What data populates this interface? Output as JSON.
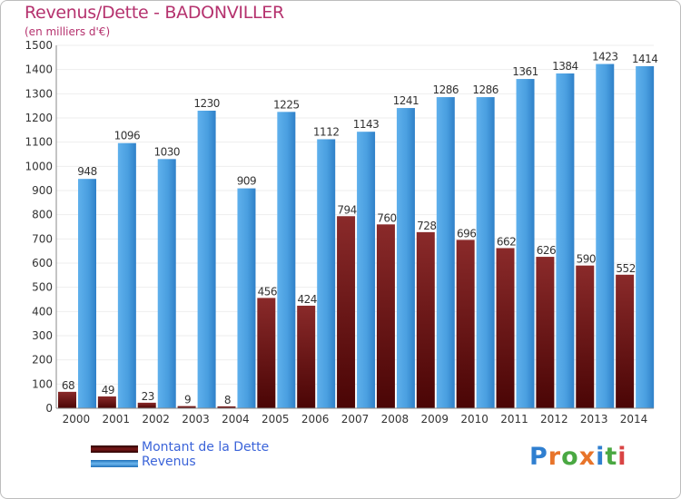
{
  "colors": {
    "title": "#b5326e",
    "debt": "#7a1818",
    "revenue": "#4a9fe0",
    "legend_text": "#3b64d9",
    "grid": "#eeeeee",
    "axis": "#888888"
  },
  "chart_data": {
    "type": "bar",
    "title": "Revenus/Dette - BADONVILLER",
    "subtitle": "(en milliers d'€)",
    "categories": [
      "2000",
      "2001",
      "2002",
      "2003",
      "2004",
      "2005",
      "2006",
      "2007",
      "2008",
      "2009",
      "2010",
      "2011",
      "2012",
      "2013",
      "2014"
    ],
    "series": [
      {
        "name": "Montant de la Dette",
        "color": "#7a1818",
        "values": [
          68,
          49,
          23,
          9,
          8,
          456,
          424,
          794,
          760,
          728,
          696,
          662,
          626,
          590,
          552
        ]
      },
      {
        "name": "Revenus",
        "color": "#4a9fe0",
        "values": [
          948,
          1096,
          1030,
          1230,
          909,
          1225,
          1112,
          1143,
          1241,
          1286,
          1286,
          1361,
          1384,
          1423,
          1414
        ]
      }
    ],
    "ylim": [
      0,
      1500
    ],
    "yticks": [
      0,
      100,
      200,
      300,
      400,
      500,
      600,
      700,
      800,
      900,
      1000,
      1100,
      1200,
      1300,
      1400,
      1500
    ],
    "grid": true,
    "legend_position": "bottom-left"
  },
  "logo": {
    "text": "Proxiti",
    "letters": [
      "P",
      "r",
      "o",
      "x",
      "i",
      "t",
      "i"
    ],
    "colors": [
      "#2f7fd0",
      "#e8742a",
      "#4aa842",
      "#e8742a",
      "#2f7fd0",
      "#4aa842",
      "#d94444"
    ]
  }
}
